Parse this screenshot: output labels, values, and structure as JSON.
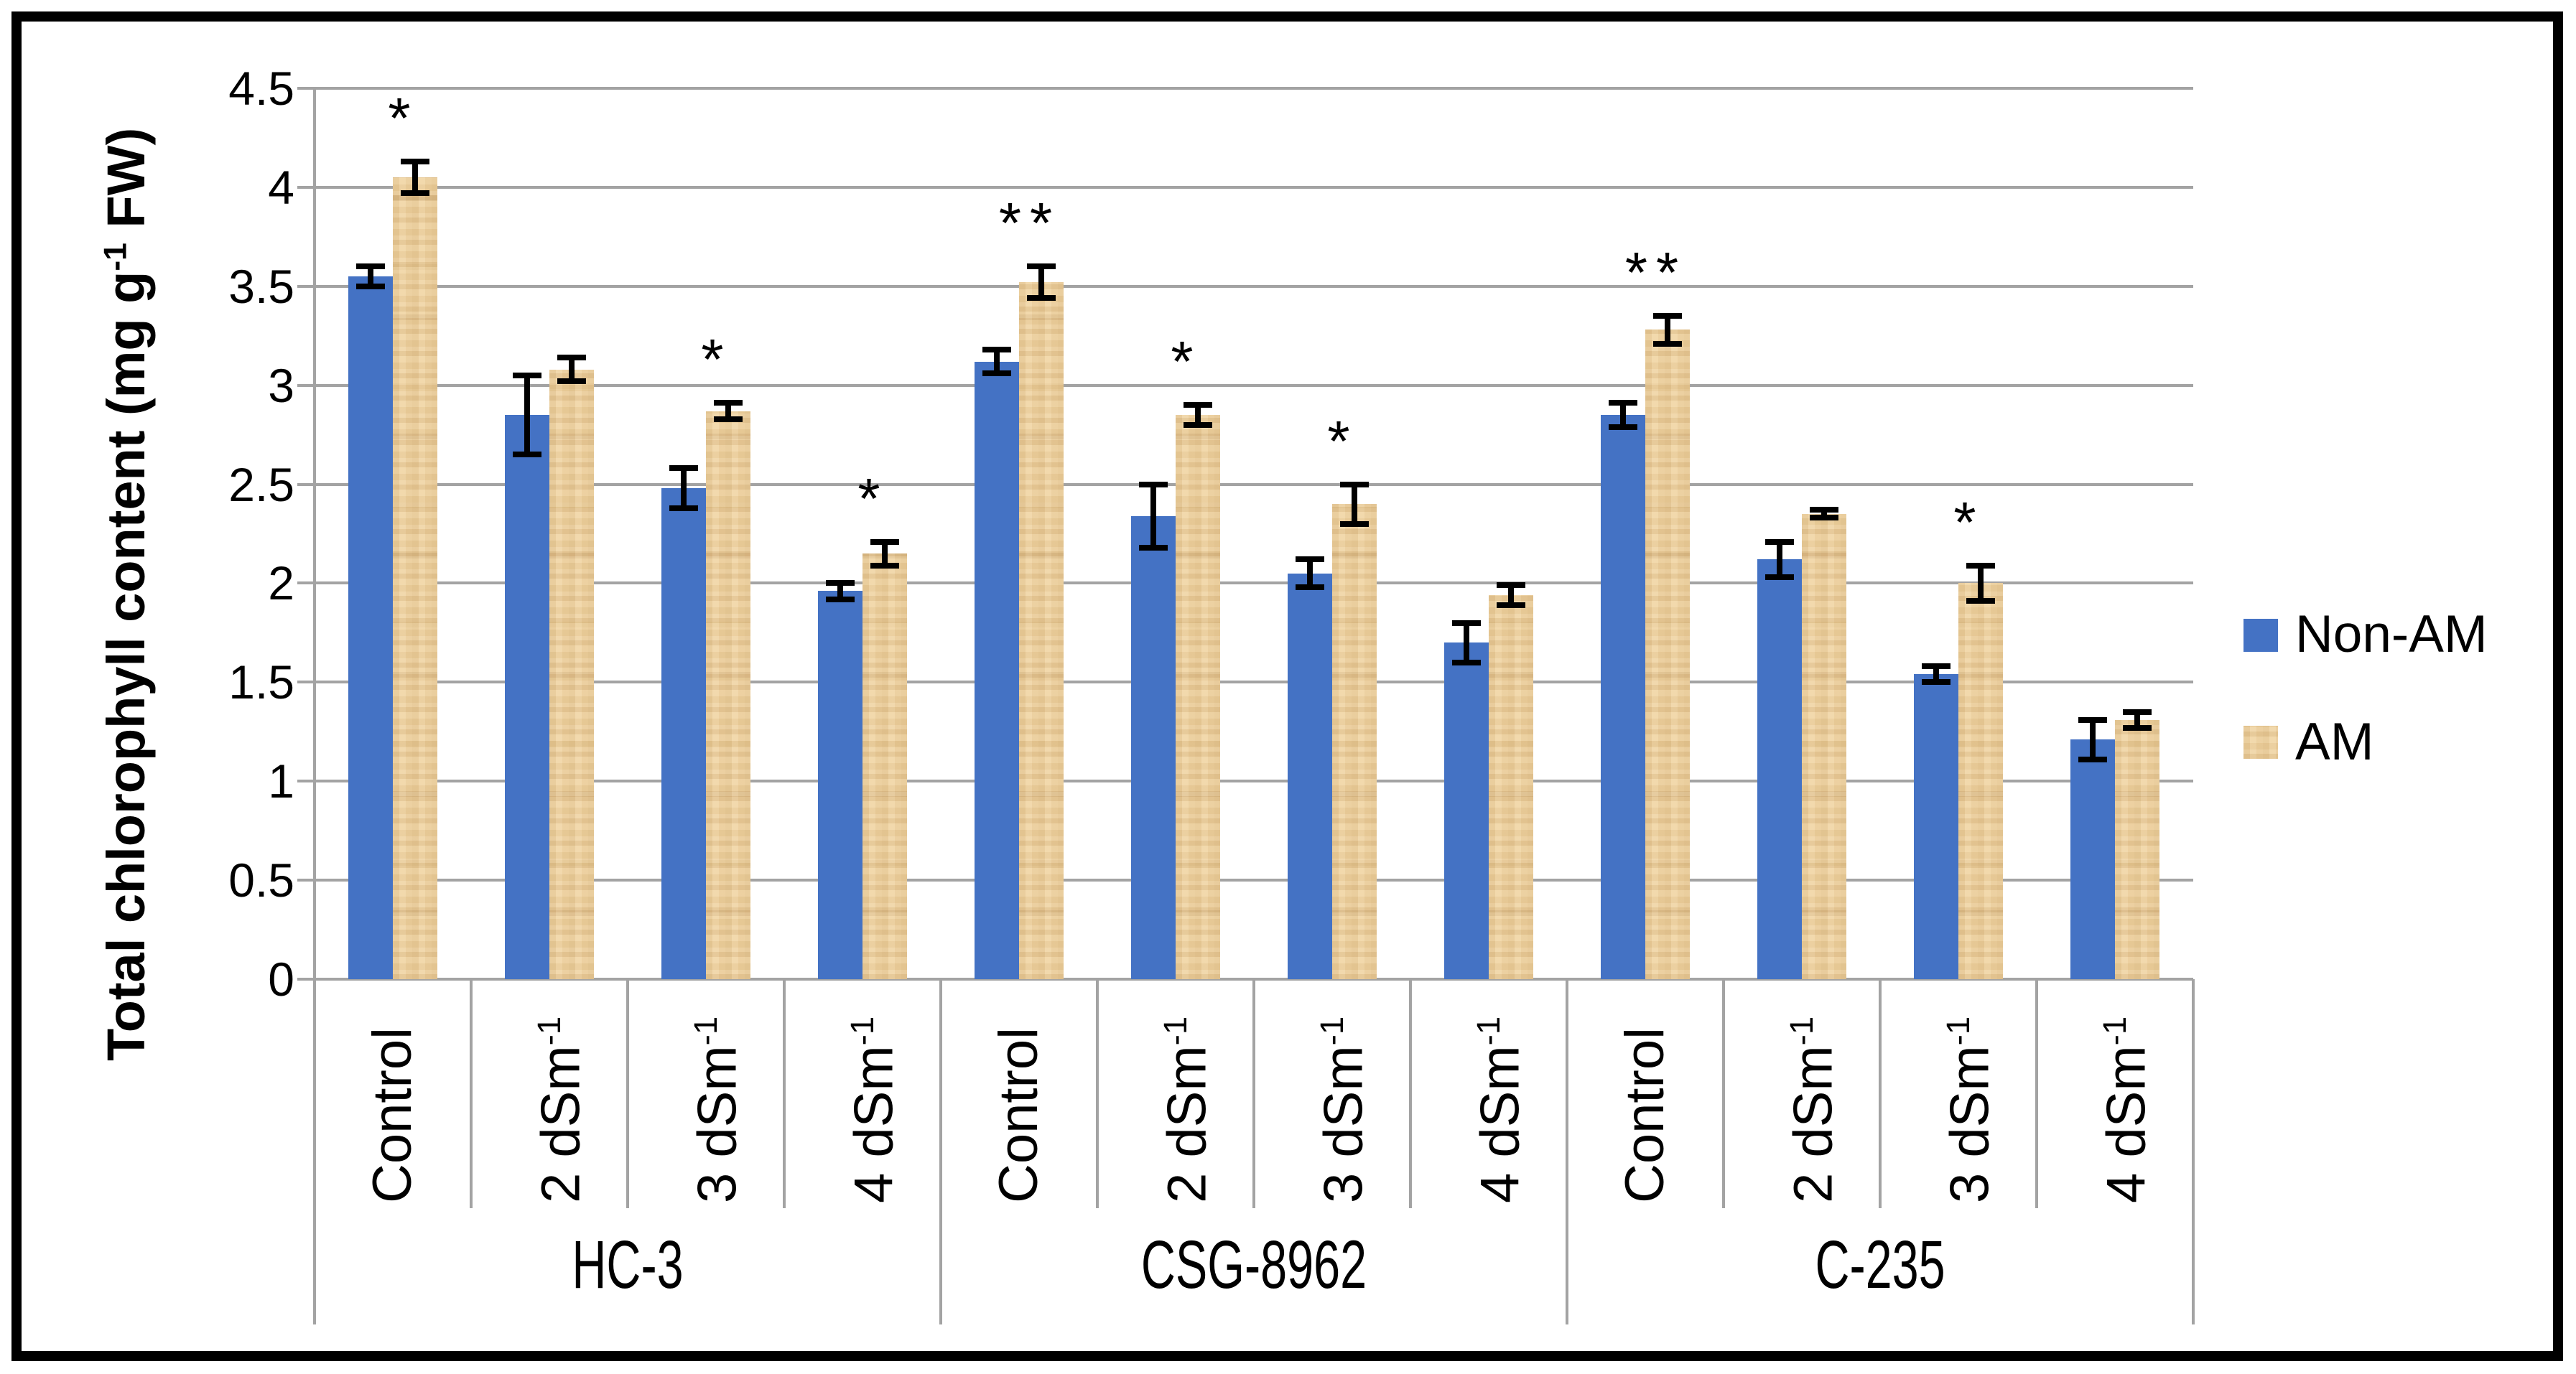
{
  "chart_data": {
    "type": "bar",
    "title": "",
    "ylabel": "Total chlorophyll content (mg g⁻¹ FW)",
    "ylabel_parts": {
      "prefix": "Total chlorophyll content (mg g",
      "sup": "-1",
      "suffix": " FW)"
    },
    "ylim": [
      0,
      4.5
    ],
    "ytick_step": 0.5,
    "ytick_labels": [
      "4.5",
      "4",
      "3.5",
      "3",
      "2.5",
      "2",
      "1.5",
      "1",
      "0.5",
      "0"
    ],
    "grid": true,
    "legend_position": "right-middle",
    "groups": [
      {
        "label": "HC-3"
      },
      {
        "label": "CSG-8962"
      },
      {
        "label": "C-235"
      }
    ],
    "categories_per_group": [
      {
        "base": "Control",
        "sup": ""
      },
      {
        "base": "2 dSm",
        "sup": "-1"
      },
      {
        "base": "3 dSm",
        "sup": "-1"
      },
      {
        "base": "4 dSm",
        "sup": "-1"
      }
    ],
    "series": [
      {
        "name": "Non-AM",
        "color": "#4472C4",
        "fill": "solid",
        "values": [
          3.55,
          2.85,
          2.48,
          1.96,
          3.12,
          2.34,
          2.05,
          1.7,
          2.85,
          2.12,
          1.54,
          1.21
        ],
        "errors": [
          0.05,
          0.2,
          0.1,
          0.04,
          0.06,
          0.16,
          0.07,
          0.1,
          0.06,
          0.09,
          0.04,
          0.1
        ]
      },
      {
        "name": "AM",
        "color": "#EFD2A0",
        "fill": "woven-texture",
        "values": [
          4.05,
          3.08,
          2.87,
          2.15,
          3.52,
          2.85,
          2.4,
          1.94,
          3.28,
          2.35,
          2.0,
          1.31
        ],
        "errors": [
          0.08,
          0.06,
          0.04,
          0.06,
          0.08,
          0.05,
          0.1,
          0.05,
          0.07,
          0.02,
          0.09,
          0.04
        ]
      }
    ],
    "significance_marks": [
      "*",
      "",
      "*",
      "*",
      "**",
      "*",
      "*",
      "",
      "**",
      "",
      "*",
      ""
    ]
  },
  "colors": {
    "bar_blue": "#4472C4",
    "bar_tan": "#EFD2A0",
    "grid": "#A3A3A3",
    "error_bar": "#000000",
    "text": "#000000",
    "border": "#000000",
    "background": "#FFFFFF"
  }
}
